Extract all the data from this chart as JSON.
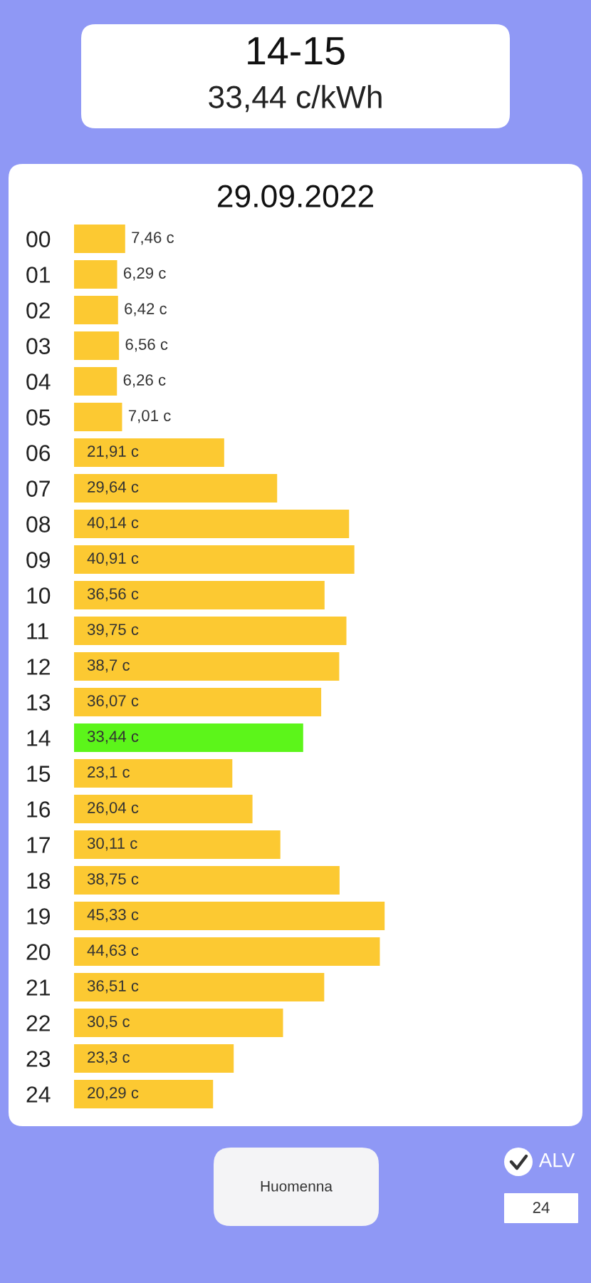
{
  "chart_data": {
    "type": "bar",
    "orientation": "horizontal",
    "title": "29.09.2022",
    "categories": [
      "00",
      "01",
      "02",
      "03",
      "04",
      "05",
      "06",
      "07",
      "08",
      "09",
      "10",
      "11",
      "12",
      "13",
      "14",
      "15",
      "16",
      "17",
      "18",
      "19",
      "20",
      "21",
      "22",
      "23",
      "24"
    ],
    "values": [
      7.46,
      6.29,
      6.42,
      6.56,
      6.26,
      7.01,
      21.91,
      29.64,
      40.14,
      40.91,
      36.56,
      39.75,
      38.7,
      36.07,
      33.44,
      23.1,
      26.04,
      30.11,
      38.75,
      45.33,
      44.63,
      36.51,
      30.5,
      23.3,
      20.29
    ],
    "value_labels": [
      "7,46 c",
      "6,29 c",
      "6,42 c",
      "6,56 c",
      "6,26 c",
      "7,01 c",
      "21,91 c",
      "29,64 c",
      "40,14 c",
      "40,91 c",
      "36,56 c",
      "39,75 c",
      "38,7 c",
      "36,07 c",
      "33,44 c",
      "23,1 c",
      "26,04 c",
      "30,11 c",
      "38,75 c",
      "45,33 c",
      "44,63 c",
      "36,51 c",
      "30,5 c",
      "23,3 c",
      "20,29 c"
    ],
    "colors": [
      "#fcc932",
      "#fcc932",
      "#fcc932",
      "#fcc932",
      "#fcc932",
      "#fcc932",
      "#fcc932",
      "#fcc932",
      "#fcc932",
      "#fcc932",
      "#fcc932",
      "#fcc932",
      "#fcc932",
      "#fcc932",
      "#5cf51a",
      "#fcc932",
      "#fcc932",
      "#fcc932",
      "#fcc932",
      "#fcc932",
      "#fcc932",
      "#fcc932",
      "#fcc932",
      "#fcc932",
      "#fcc932"
    ],
    "tick_labels": "y",
    "annotations": [
      "14-15",
      "33,44 c/kWh",
      "Huomenna",
      "ALV",
      "24"
    ]
  }
}
